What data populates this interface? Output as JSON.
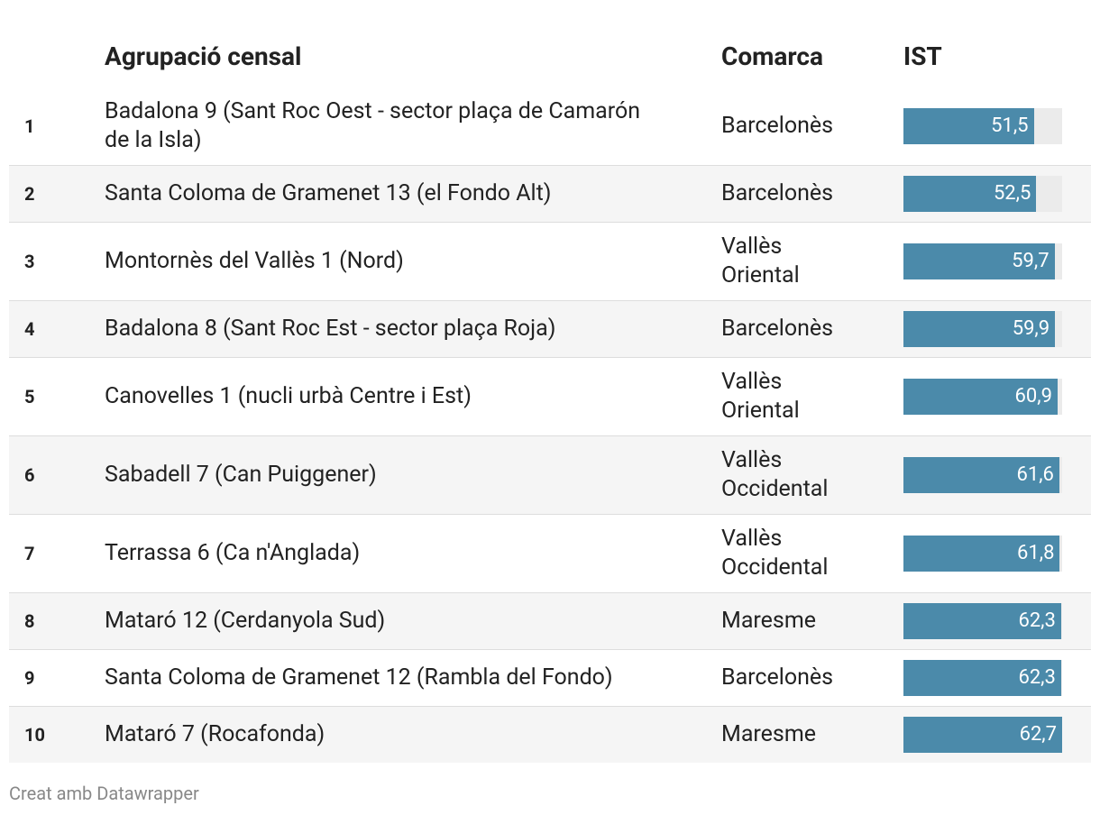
{
  "table": {
    "columns": [
      "Agrupació censal",
      "Comarca",
      "IST"
    ],
    "rows": [
      {
        "rank": "1",
        "name": "Badalona 9 (Sant Roc Oest - sector plaça de Camarón de la Isla)",
        "comarca": "Barcelonès"
      },
      {
        "rank": "2",
        "name": "Santa Coloma de Gramenet 13 (el Fondo Alt)",
        "comarca": "Barcelonès"
      },
      {
        "rank": "3",
        "name": "Montornès del Vallès 1 (Nord)",
        "comarca": "Vallès Oriental"
      },
      {
        "rank": "4",
        "name": "Badalona 8 (Sant Roc Est - sector plaça Roja)",
        "comarca": "Barcelonès"
      },
      {
        "rank": "5",
        "name": "Canovelles 1 (nucli urbà Centre i Est)",
        "comarca": "Vallès Oriental"
      },
      {
        "rank": "6",
        "name": "Sabadell 7 (Can Puiggener)",
        "comarca": "Vallès Occidental"
      },
      {
        "rank": "7",
        "name": "Terrassa 6 (Ca n'Anglada)",
        "comarca": "Vallès Occidental"
      },
      {
        "rank": "8",
        "name": "Mataró 12 (Cerdanyola Sud)",
        "comarca": "Maresme"
      },
      {
        "rank": "9",
        "name": "Santa Coloma de Gramenet 12 (Rambla del Fondo)",
        "comarca": "Barcelonès"
      },
      {
        "rank": "10",
        "name": "Mataró 7 (Rocafonda)",
        "comarca": "Maresme"
      }
    ],
    "values": [
      51.5,
      52.5,
      59.7,
      59.9,
      60.9,
      61.6,
      61.8,
      62.3,
      62.3,
      62.7
    ],
    "value_labels": [
      "51,5",
      "52,5",
      "59,7",
      "59,9",
      "60,9",
      "61,6",
      "61,8",
      "62,3",
      "62,3",
      "62,7"
    ],
    "bar_color": "#4b8aaa"
  },
  "footer": "Creat amb Datawrapper"
}
